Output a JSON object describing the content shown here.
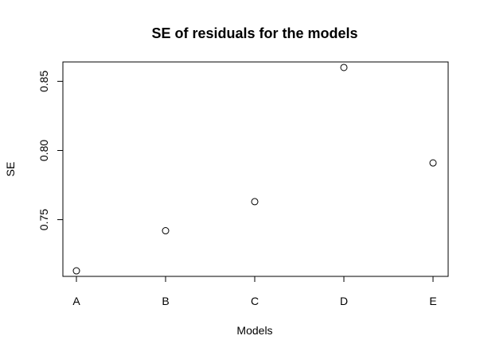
{
  "chart_data": {
    "type": "scatter",
    "title": "SE of residuals for the models",
    "xlabel": "Models",
    "ylabel": "SE",
    "categories": [
      "A",
      "B",
      "C",
      "D",
      "E"
    ],
    "values": [
      0.713,
      0.742,
      0.763,
      0.86,
      0.791
    ],
    "yticks": [
      0.75,
      0.8,
      0.85
    ],
    "ytick_labels": [
      "0.75",
      "0.80",
      "0.85"
    ],
    "ylim": [
      0.709,
      0.864
    ],
    "grid": false,
    "legend": "none",
    "marker": "open-circle",
    "color": "#000000"
  }
}
